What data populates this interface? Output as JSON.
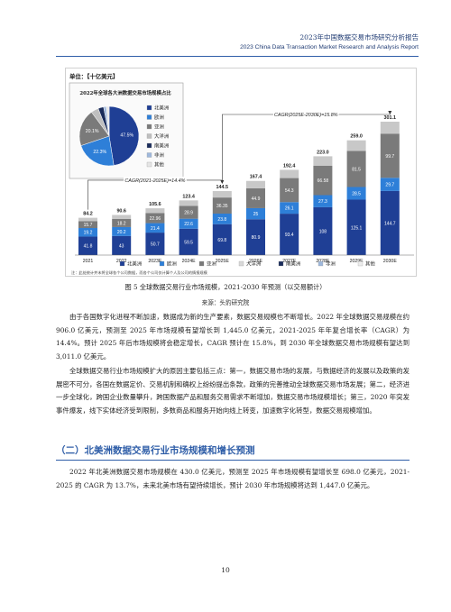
{
  "header": {
    "title_cn": "2023年中国数据交易市场研究分析报告",
    "title_en": "2023 China Data Transaction Market Research and Analysis Report"
  },
  "figure": {
    "unit_label": "单位：【十亿美元】",
    "pie_title": "2022年全球各大洲数据交易市场规模占比",
    "pie_note": "注：此处统计并未将全球各个公司数据，而各个公司仅计算个人及公司的情报规模",
    "cagr1": "CAGR(2021-2025E)=14.4%",
    "cagr2": "CAGR(2025E-2030E)=15.8%"
  },
  "chart_data": [
    {
      "type": "bar",
      "categories": [
        "2021",
        "2022",
        "2023E",
        "2024E",
        "2025E",
        "2026E",
        "2027E",
        "2028E",
        "2029E",
        "2030E"
      ],
      "totals": [
        84.2,
        90.6,
        105.6,
        123.4,
        144.5,
        167.4,
        192.4,
        223.0,
        259.0,
        301.1
      ],
      "series": [
        {
          "name": "北美洲",
          "color": "#1f3f95",
          "values": [
            41.8,
            43.0,
            50.7,
            59.5,
            69.8,
            80.9,
            93.4,
            108.0,
            125.1,
            144.7
          ]
        },
        {
          "name": "欧洲",
          "color": "#2e7fd8",
          "values": [
            19.2,
            20.2,
            21.4,
            22.6,
            23.8,
            25.0,
            26.1,
            27.3,
            28.5,
            29.7
          ]
        },
        {
          "name": "亚洲",
          "color": "#7a7a7a",
          "values": [
            15.7,
            18.2,
            22.96,
            28.9,
            36.35,
            44.9,
            54.3,
            66.58,
            81.5,
            99.7
          ]
        },
        {
          "name": "大洋洲",
          "color": "#d9d9d9",
          "values": [
            0,
            0,
            0,
            0,
            0,
            0,
            0,
            0,
            0,
            0
          ]
        },
        {
          "name": "南美洲",
          "color": "#1a2c5b",
          "values": [
            0,
            0,
            0,
            0,
            0,
            0,
            0,
            0,
            0,
            0
          ]
        },
        {
          "name": "非洲",
          "color": "#9fb8dc",
          "values": [
            0,
            0,
            0,
            0,
            0,
            0,
            0,
            0,
            0,
            0
          ]
        },
        {
          "name": "其他",
          "color": "#ececec",
          "values": [
            0,
            0,
            0,
            0,
            0,
            0,
            0,
            0,
            0,
            0
          ]
        }
      ],
      "legend": [
        "北美洲",
        "欧洲",
        "亚洲",
        "大洋洲",
        "南美洲",
        "非洲",
        "其他"
      ],
      "legend_position": "bottom"
    },
    {
      "type": "pie",
      "title": "2022年全球各大洲数据交易市场规模占比",
      "labels": [
        "北美洲",
        "欧洲",
        "亚洲",
        "大洋洲",
        "南美洲",
        "非洲",
        "其他"
      ],
      "values": [
        47.5,
        22.3,
        20.1,
        4.1,
        3.0,
        1.5,
        1.5
      ],
      "value_labels": [
        "47.5%",
        "22.3%",
        "20.1%",
        "",
        "",
        "",
        ""
      ],
      "colors": [
        "#1f3f95",
        "#2e7fd8",
        "#7a7a7a",
        "#bfbfbf",
        "#1a2c5b",
        "#9fb8dc",
        "#e5e5e5"
      ],
      "legend_position": "right"
    }
  ],
  "caption": "图 5  全球数据交易行业市场规模，2021-2030 年预测（以交易额计）",
  "source": "来源：头豹研究院",
  "paragraphs": {
    "p1": "由于各国数字化进程不断加速，数据成为新的生产要素，数据交易规模也不断增长。2022 年全球数据交易规模在约 906.0 亿美元，预测至 2025 年市场规模有望增长到 1,445.0 亿美元，2021-2025 年年复合增长率（CAGR）为 14.4%。预计 2025 年后市场规模将会稳定增长，CAGR 预计在 15.8%，到 2030 年全球数据交易市场规模有望达到 3,011.0 亿美元。",
    "p2": "全球数据交易行业市场规模扩大的原因主要包括三点：第一，数据交易市场的发展，与数据经济的发展以及政策的发展密不可分，各国在数据定价、交易机制和确权上纷纷提出条款，政策的完善推动全球数据交易市场发展；第二，经济进一步全球化，跨国企业数量攀升，跨国数据产品和服务交易需求不断增加，数据交易市场规模增长；第三，2020 年突发事件爆发，线下实体经济受到限制，多数商品和服务开始向线上转变，加速数字化转型，数据交易规模增加。",
    "p3": "2022 年北美洲数据交易市场规模在 430.0 亿美元，预测至 2025 年市场规模有望增长至 698.0 亿美元，2021-2025 的 CAGR 为 13.7%，未来北美市场有望持续增长，预计 2030 年市场规模将达到 1,447.0 亿美元。"
  },
  "section_title": "（二）北美洲数据交易行业市场规模和增长预测",
  "page_number": "10"
}
